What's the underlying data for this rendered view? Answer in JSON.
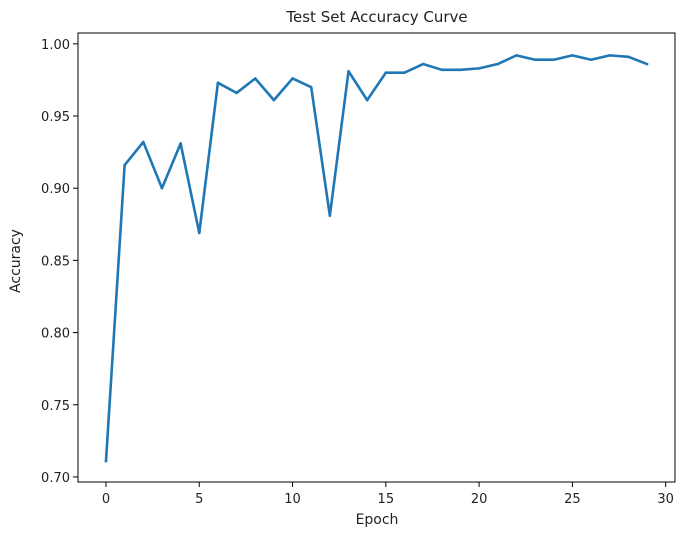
{
  "chart_data": {
    "type": "line",
    "title": "Test Set Accuracy Curve",
    "xlabel": "Epoch",
    "ylabel": "Accuracy",
    "xlim": [
      -1.5,
      30.5
    ],
    "ylim": [
      0.6965,
      1.0075
    ],
    "x_ticks": [
      0,
      5,
      10,
      15,
      20,
      25,
      30
    ],
    "y_ticks": [
      0.7,
      0.75,
      0.8,
      0.85,
      0.9,
      0.95,
      1.0
    ],
    "x_tick_labels": [
      "0",
      "5",
      "10",
      "15",
      "20",
      "25",
      "30"
    ],
    "y_tick_labels": [
      "0.70",
      "0.75",
      "0.80",
      "0.85",
      "0.90",
      "0.95",
      "1.00"
    ],
    "grid": false,
    "series": [
      {
        "color": "#1f77b4",
        "x": [
          0,
          1,
          2,
          3,
          4,
          5,
          6,
          7,
          8,
          9,
          10,
          11,
          12,
          13,
          14,
          15,
          16,
          17,
          18,
          19,
          20,
          21,
          22,
          23,
          24,
          25,
          26,
          27,
          28,
          29
        ],
        "values": [
          0.711,
          0.916,
          0.932,
          0.9,
          0.931,
          0.869,
          0.973,
          0.966,
          0.976,
          0.961,
          0.976,
          0.97,
          0.881,
          0.981,
          0.961,
          0.98,
          0.98,
          0.986,
          0.982,
          0.982,
          0.983,
          0.986,
          0.992,
          0.989,
          0.989,
          0.992,
          0.989,
          0.992,
          0.991,
          0.986
        ]
      }
    ]
  }
}
